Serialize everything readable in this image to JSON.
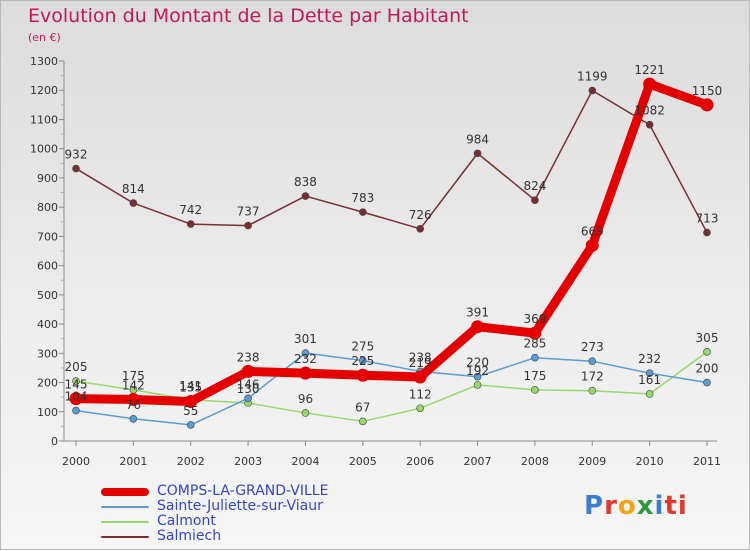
{
  "chart_data": {
    "type": "line",
    "title": "Evolution du Montant de la Dette par Habitant",
    "unit_label": "(en €)",
    "x": [
      "2000",
      "2001",
      "2002",
      "2003",
      "2004",
      "2005",
      "2006",
      "2007",
      "2008",
      "2009",
      "2010",
      "2011"
    ],
    "ylim": [
      0,
      1300
    ],
    "yticks": [
      0,
      100,
      200,
      300,
      400,
      500,
      600,
      700,
      800,
      900,
      1000,
      1100,
      1200,
      1300
    ],
    "grid": false,
    "legend_position": "bottom-left",
    "series": [
      {
        "name": "COMPS-LA-GRAND-VILLE",
        "color": "#e50000",
        "bold": true,
        "values": [
          145,
          142,
          135,
          238,
          232,
          225,
          219,
          391,
          369,
          669,
          1221,
          1150
        ],
        "labels": [
          "145",
          "142",
          "135",
          "238",
          "232",
          "225",
          "219",
          "391",
          "369",
          "669",
          "1221",
          "1150"
        ]
      },
      {
        "name": "Sainte-Juliette-sur-Viaur",
        "color": "#5b9bd5",
        "bold": false,
        "values": [
          104,
          76,
          55,
          146,
          301,
          275,
          238,
          220,
          285,
          273,
          232,
          200
        ],
        "labels": [
          "104",
          "76",
          "55",
          "146",
          "301",
          "275",
          "238",
          "220",
          "285",
          "273",
          "232",
          "200"
        ]
      },
      {
        "name": "Calmont",
        "color": "#96d96a",
        "bold": false,
        "values": [
          205,
          175,
          141,
          130,
          96,
          67,
          112,
          192,
          175,
          172,
          161,
          305
        ],
        "labels": [
          "205",
          "175",
          "141",
          "130",
          "96",
          "67",
          "112",
          "192",
          "175",
          "172",
          "161",
          "305"
        ]
      },
      {
        "name": "Salmiech",
        "color": "#7a2e32",
        "bold": false,
        "values": [
          932,
          814,
          742,
          737,
          838,
          783,
          726,
          984,
          824,
          1199,
          1082,
          713
        ],
        "labels": [
          "932",
          "814",
          "742",
          "737",
          "838",
          "783",
          "726",
          "984",
          "824",
          "1199",
          "1082",
          "713"
        ]
      }
    ]
  },
  "logo": {
    "letters": [
      "P",
      "r",
      "o",
      "x",
      "i",
      "ti"
    ]
  }
}
